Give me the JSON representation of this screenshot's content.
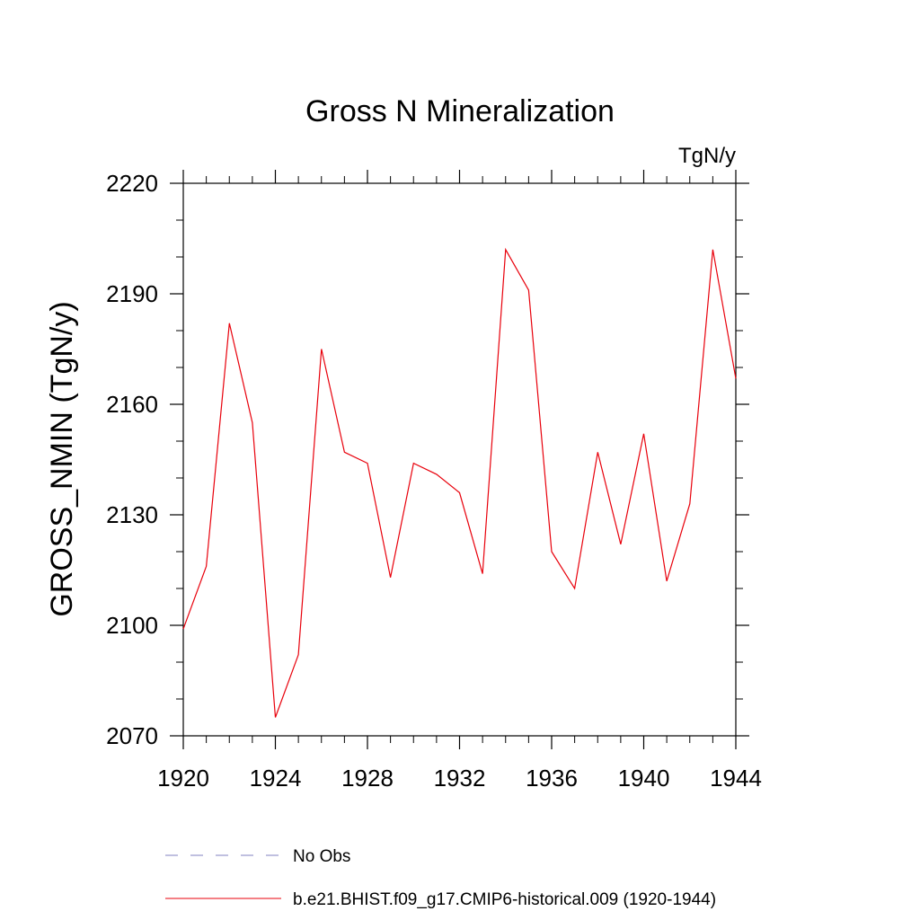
{
  "chart_data": {
    "type": "line",
    "title": "Gross N Mineralization",
    "units_label": "TgN/y",
    "xlabel": "",
    "ylabel": "GROSS_NMIN  (TgN/y)",
    "xlim": [
      1920,
      1944
    ],
    "ylim": [
      2070,
      2220
    ],
    "x_major_ticks": [
      1920,
      1924,
      1928,
      1932,
      1936,
      1940,
      1944
    ],
    "x_tick_labels": [
      "1920",
      "1924",
      "1928",
      "1932",
      "1936",
      "1940",
      "1944"
    ],
    "x_minor_step": 1,
    "y_major_ticks": [
      2070,
      2100,
      2130,
      2160,
      2190,
      2220
    ],
    "y_tick_labels": [
      "2070",
      "2100",
      "2130",
      "2160",
      "2190",
      "2220"
    ],
    "y_minor_step": 10,
    "grid": false,
    "legend_position": "bottom",
    "series": [
      {
        "name": "No Obs",
        "color": "#8080c0",
        "style": "dashed",
        "x": [],
        "values": []
      },
      {
        "name": "b.e21.BHIST.f09_g17.CMIP6-historical.009 (1920-1944)",
        "color": "#e8000b",
        "style": "solid",
        "x": [
          1920,
          1921,
          1922,
          1923,
          1924,
          1925,
          1926,
          1927,
          1928,
          1929,
          1930,
          1931,
          1932,
          1933,
          1934,
          1935,
          1936,
          1937,
          1938,
          1939,
          1940,
          1941,
          1942,
          1943,
          1944
        ],
        "values": [
          2099,
          2116,
          2182,
          2155,
          2075,
          2092,
          2175,
          2147,
          2144,
          2113,
          2144,
          2141,
          2136,
          2114,
          2202,
          2191,
          2120,
          2110,
          2147,
          2122,
          2152,
          2112,
          2133,
          2202,
          2167
        ]
      }
    ]
  }
}
